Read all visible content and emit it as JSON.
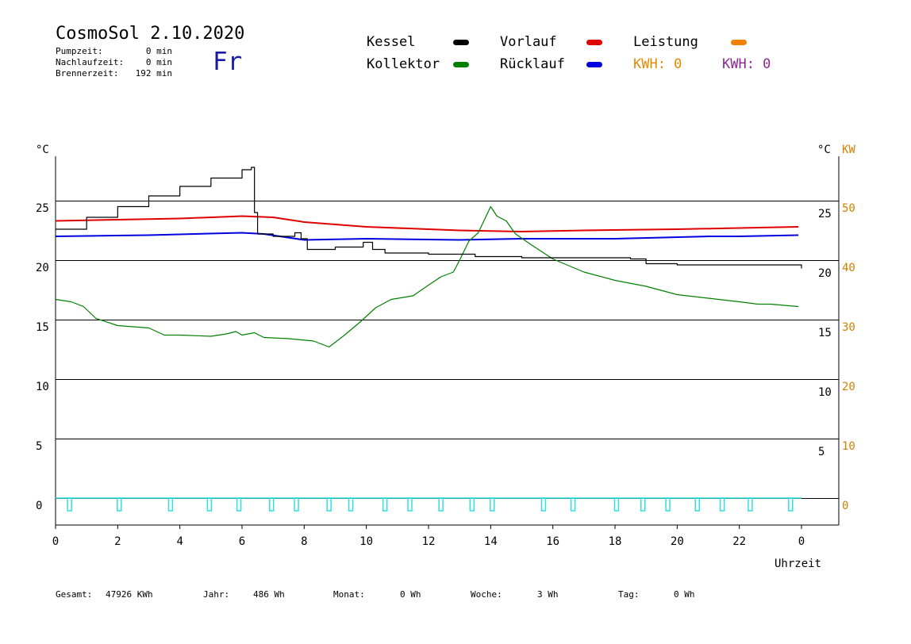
{
  "header": {
    "title": "CosmoSol 2.10.2020",
    "day": "Fr",
    "stats": [
      {
        "label": "Pumpzeit:",
        "value": "0 min"
      },
      {
        "label": "Nachlaufzeit:",
        "value": "0 min"
      },
      {
        "label": "Brennerzeit:",
        "value": "192 min"
      }
    ]
  },
  "legend": {
    "kessel": {
      "label": "Kessel",
      "color": "#000000"
    },
    "kollektor": {
      "label": "Kollektor",
      "color": "#008000"
    },
    "vorlauf": {
      "label": "Vorlauf",
      "color": "#e00000"
    },
    "ruecklauf": {
      "label": "Rücklauf",
      "color": "#0000e0"
    },
    "leistung": {
      "label": "Leistung",
      "color": "#f08000"
    },
    "kwh_orange": "KWH: 0",
    "kwh_purple": "KWH: 0"
  },
  "footer": [
    {
      "label": "Gesamt:",
      "value": "47926 KWh"
    },
    {
      "label": "Jahr:",
      "value": "486 Wh"
    },
    {
      "label": "Monat:",
      "value": "0 Wh"
    },
    {
      "label": "Woche:",
      "value": "3 Wh"
    },
    {
      "label": "Tag:",
      "value": "0 Wh"
    }
  ],
  "chart_data": {
    "type": "line",
    "title": "CosmoSol 2.10.2020",
    "xlabel": "Uhrzeit",
    "ylabel": "°C",
    "y2label": "KW",
    "xlim": [
      0,
      24
    ],
    "ylim": [
      -2,
      29
    ],
    "y2lim": [
      -4,
      58
    ],
    "grid": true,
    "x_ticks": [
      "0",
      "2",
      "4",
      "6",
      "8",
      "10",
      "12",
      "14",
      "16",
      "18",
      "20",
      "22",
      "0"
    ],
    "y_ticks_left": [
      0,
      5,
      10,
      15,
      20,
      25
    ],
    "y_ticks_right_c": [
      5,
      10,
      15,
      20,
      25
    ],
    "y_ticks_right_kw": [
      0,
      10,
      20,
      30,
      40,
      50
    ],
    "series": [
      {
        "name": "Kessel",
        "color": "#000000",
        "step": true,
        "points": [
          [
            0,
            22.6
          ],
          [
            1,
            23.6
          ],
          [
            2,
            24.5
          ],
          [
            3,
            25.4
          ],
          [
            4,
            26.2
          ],
          [
            5,
            26.9
          ],
          [
            6,
            27.6
          ],
          [
            6.3,
            27.8
          ],
          [
            6.4,
            24
          ],
          [
            6.5,
            22.2
          ],
          [
            7,
            22
          ],
          [
            7.7,
            22.3
          ],
          [
            7.9,
            21.8
          ],
          [
            8.1,
            20.9
          ],
          [
            9,
            21.1
          ],
          [
            9.9,
            21.5
          ],
          [
            10.2,
            20.9
          ],
          [
            10.6,
            20.6
          ],
          [
            12,
            20.5
          ],
          [
            13.5,
            20.3
          ],
          [
            14,
            20.3
          ],
          [
            15,
            20.2
          ],
          [
            17,
            20.2
          ],
          [
            18.5,
            20.1
          ],
          [
            19,
            19.7
          ],
          [
            20,
            19.6
          ],
          [
            22,
            19.6
          ],
          [
            23.9,
            19.6
          ],
          [
            24,
            19.3
          ]
        ]
      },
      {
        "name": "Kollektor",
        "color": "#008000",
        "points": [
          [
            0,
            16.7
          ],
          [
            0.5,
            16.5
          ],
          [
            0.9,
            16.1
          ],
          [
            1.3,
            15.1
          ],
          [
            2,
            14.5
          ],
          [
            3,
            14.3
          ],
          [
            3.5,
            13.7
          ],
          [
            4,
            13.7
          ],
          [
            5,
            13.6
          ],
          [
            5.5,
            13.8
          ],
          [
            5.8,
            14
          ],
          [
            6,
            13.7
          ],
          [
            6.4,
            13.9
          ],
          [
            6.7,
            13.5
          ],
          [
            7.5,
            13.4
          ],
          [
            8.3,
            13.2
          ],
          [
            8.8,
            12.7
          ],
          [
            9.3,
            13.7
          ],
          [
            9.8,
            14.8
          ],
          [
            10.3,
            16
          ],
          [
            10.8,
            16.7
          ],
          [
            11.5,
            17
          ],
          [
            12,
            17.9
          ],
          [
            12.4,
            18.6
          ],
          [
            12.8,
            19
          ],
          [
            13,
            20
          ],
          [
            13.3,
            21.6
          ],
          [
            13.6,
            22.3
          ],
          [
            13.8,
            23.4
          ],
          [
            14,
            24.5
          ],
          [
            14.2,
            23.7
          ],
          [
            14.5,
            23.3
          ],
          [
            14.8,
            22.2
          ],
          [
            15.3,
            21.3
          ],
          [
            16,
            20.1
          ],
          [
            17,
            19
          ],
          [
            18,
            18.3
          ],
          [
            19,
            17.8
          ],
          [
            20,
            17.1
          ],
          [
            21,
            16.8
          ],
          [
            22,
            16.5
          ],
          [
            22.6,
            16.3
          ],
          [
            23,
            16.3
          ],
          [
            23.9,
            16.1
          ]
        ]
      },
      {
        "name": "Vorlauf",
        "color": "#e00000",
        "points": [
          [
            0,
            23.3
          ],
          [
            2,
            23.4
          ],
          [
            4,
            23.5
          ],
          [
            6,
            23.7
          ],
          [
            7,
            23.6
          ],
          [
            8,
            23.2
          ],
          [
            10,
            22.8
          ],
          [
            12,
            22.6
          ],
          [
            13,
            22.5
          ],
          [
            15,
            22.4
          ],
          [
            17,
            22.5
          ],
          [
            20,
            22.6
          ],
          [
            22,
            22.7
          ],
          [
            23.9,
            22.8
          ]
        ]
      },
      {
        "name": "Rücklauf",
        "color": "#0000e0",
        "points": [
          [
            0,
            22
          ],
          [
            3,
            22.1
          ],
          [
            6,
            22.3
          ],
          [
            6.7,
            22.2
          ],
          [
            8,
            21.7
          ],
          [
            10,
            21.8
          ],
          [
            13,
            21.7
          ],
          [
            15,
            21.8
          ],
          [
            18,
            21.8
          ],
          [
            21,
            22
          ],
          [
            22,
            22
          ],
          [
            23.9,
            22.1
          ]
        ]
      },
      {
        "name": "Leistung",
        "color": "#f08000",
        "points": []
      }
    ],
    "pump_marks_h": [
      0.45,
      2.05,
      3.7,
      4.95,
      5.9,
      6.95,
      7.75,
      8.8,
      9.5,
      10.6,
      11.4,
      12.4,
      13.4,
      14.05,
      15.7,
      16.65,
      18.05,
      18.9,
      19.7,
      20.65,
      21.45,
      22.35,
      23.65
    ]
  }
}
